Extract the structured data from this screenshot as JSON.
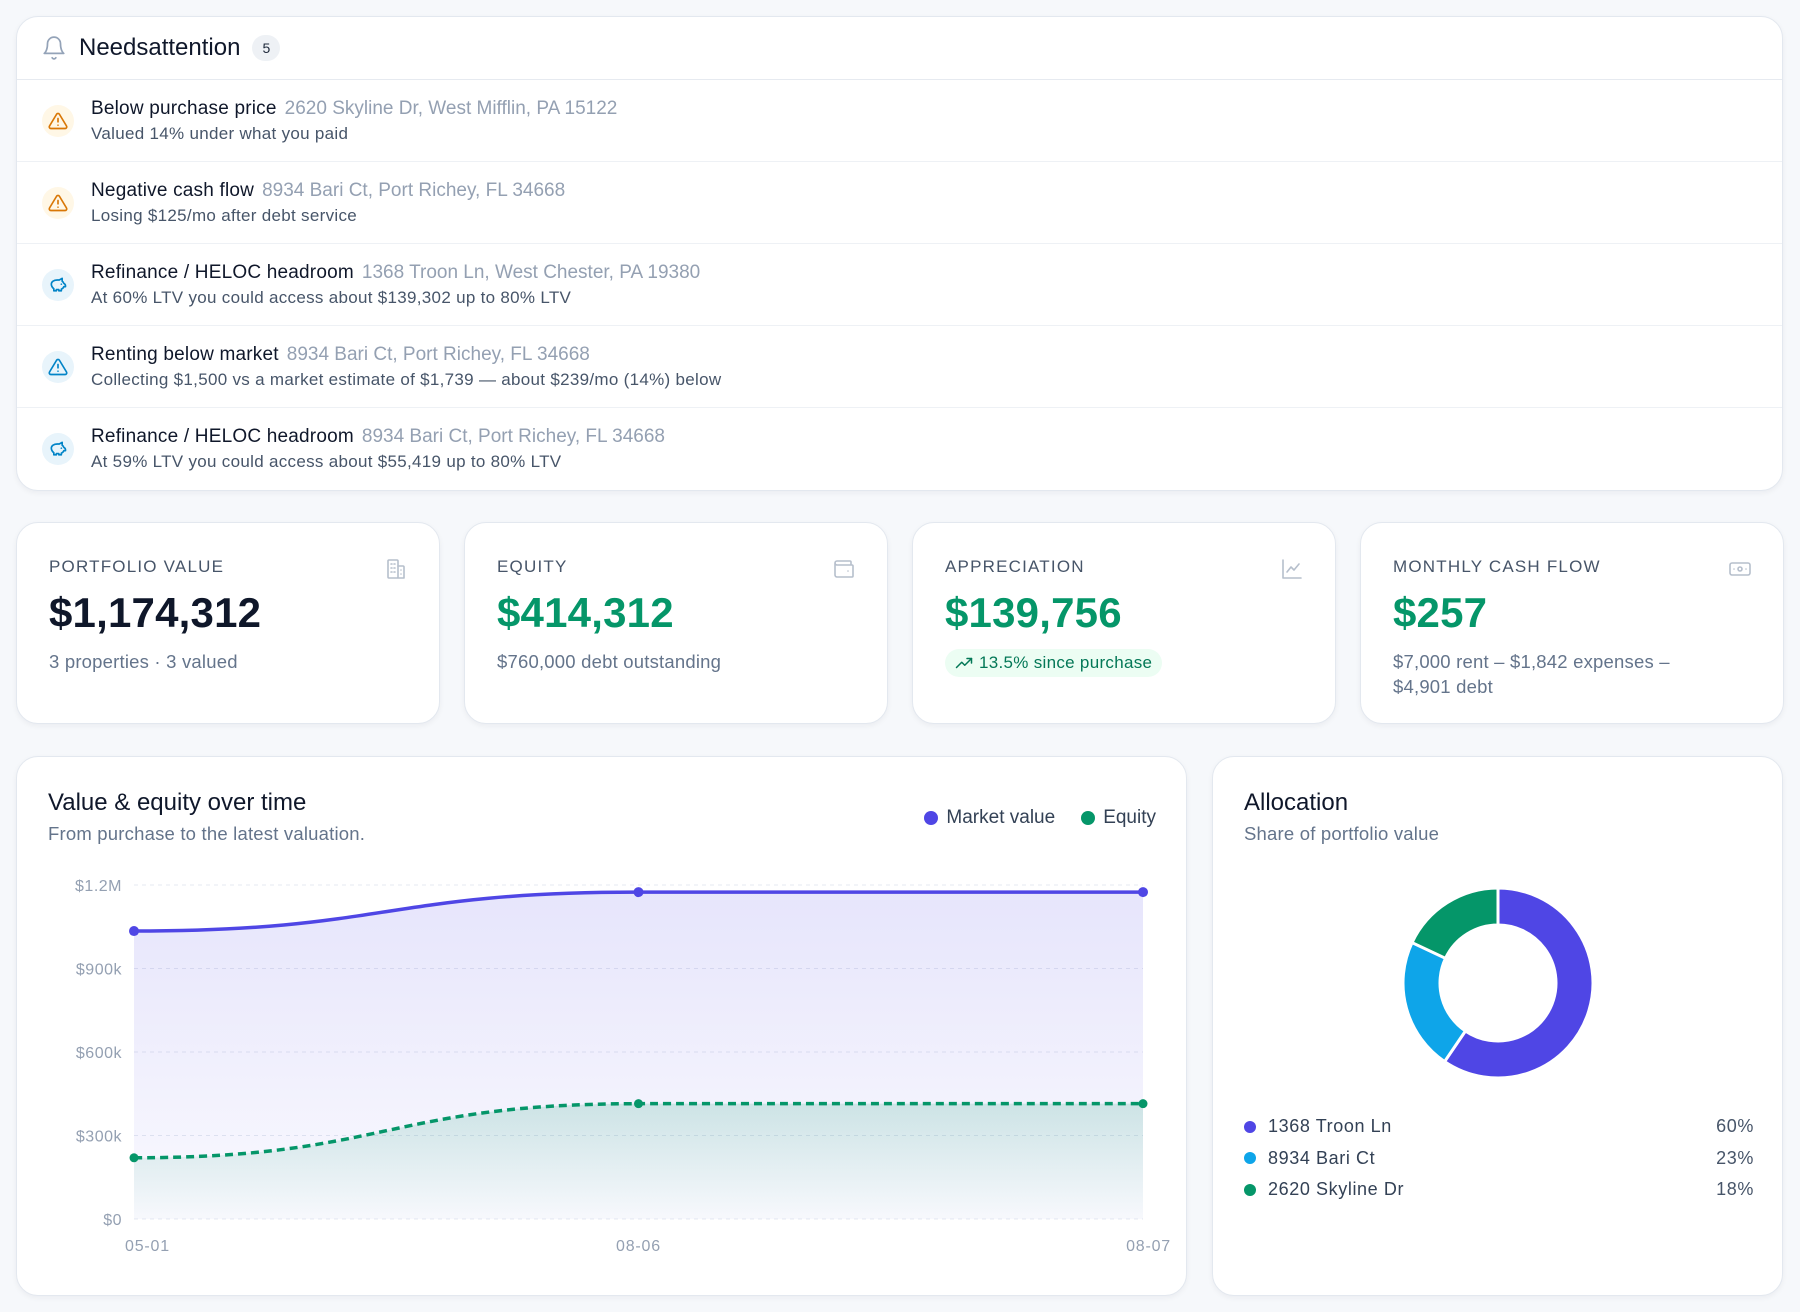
{
  "attention": {
    "title": "Needsattention",
    "count": "5",
    "items": [
      {
        "type": "warn",
        "icon": "warning-triangle-icon",
        "label": "Below purchase price",
        "address": "2620 Skyline Dr, West Mifflin, PA 15122",
        "desc": "Valued 14% under what you paid"
      },
      {
        "type": "warn",
        "icon": "warning-triangle-icon",
        "label": "Negative cash flow",
        "address": "8934 Bari Ct, Port Richey, FL 34668",
        "desc": "Losing $125/mo after debt service"
      },
      {
        "type": "info",
        "icon": "piggy-bank-icon",
        "label": "Refinance / HELOC headroom",
        "address": "1368 Troon Ln, West Chester, PA 19380",
        "desc": "At 60% LTV you could access about $139,302 up to 80% LTV"
      },
      {
        "type": "info",
        "icon": "info-triangle-icon",
        "label": "Renting below market",
        "address": "8934 Bari Ct, Port Richey, FL 34668",
        "desc": "Collecting $1,500 vs a market estimate of $1,739 — about $239/mo (14%) below"
      },
      {
        "type": "info",
        "icon": "piggy-bank-icon",
        "label": "Refinance / HELOC headroom",
        "address": "8934 Bari Ct, Port Richey, FL 34668",
        "desc": "At 59% LTV you could access about $55,419 up to 80% LTV"
      }
    ]
  },
  "kpis": {
    "portfolio": {
      "label": "PORTFOLIO VALUE",
      "value": "$1,174,312",
      "sub": "3 properties · 3 valued",
      "icon": "building-icon"
    },
    "equity": {
      "label": "EQUITY",
      "value": "$414,312",
      "sub": "$760,000 debt outstanding",
      "icon": "wallet-icon"
    },
    "appreciation": {
      "label": "APPRECIATION",
      "value": "$139,756",
      "pill": "13.5% since purchase",
      "icon": "chart-line-icon"
    },
    "cashflow": {
      "label": "MONTHLY CASH FLOW",
      "value": "$257",
      "sub": "$7,000 rent – $1,842 expenses – $4,901 debt",
      "icon": "banknote-icon"
    }
  },
  "value_chart": {
    "title": "Value & equity over time",
    "subtitle": "From purchase to the latest valuation.",
    "legend": [
      {
        "name": "Market value",
        "color": "#4f46e5"
      },
      {
        "name": "Equity",
        "color": "#059669"
      }
    ]
  },
  "chart_data": {
    "type": "line",
    "categories": [
      "05-01",
      "08-06",
      "08-07"
    ],
    "series": [
      {
        "name": "Market value",
        "values": [
          1034556,
          1174312,
          1174312
        ],
        "color": "#4f46e5"
      },
      {
        "name": "Equity",
        "values": [
          220000,
          414312,
          414312
        ],
        "color": "#059669"
      }
    ],
    "yticks": [
      0,
      300000,
      600000,
      900000,
      1200000
    ],
    "ytick_labels": [
      "$0",
      "$300k",
      "$600k",
      "$900k",
      "$1.2M"
    ],
    "ylim": [
      0,
      1200000
    ],
    "grid": true,
    "legend_position": "top-right"
  },
  "allocation": {
    "title": "Allocation",
    "subtitle": "Share of portfolio value",
    "items": [
      {
        "name": "1368 Troon Ln",
        "pct": "60%",
        "value": 0.595,
        "color": "#4f46e5"
      },
      {
        "name": "8934 Bari Ct",
        "pct": "23%",
        "value": 0.225,
        "color": "#0ea5e9"
      },
      {
        "name": "2620 Skyline Dr",
        "pct": "18%",
        "value": 0.18,
        "color": "#059669"
      }
    ]
  }
}
